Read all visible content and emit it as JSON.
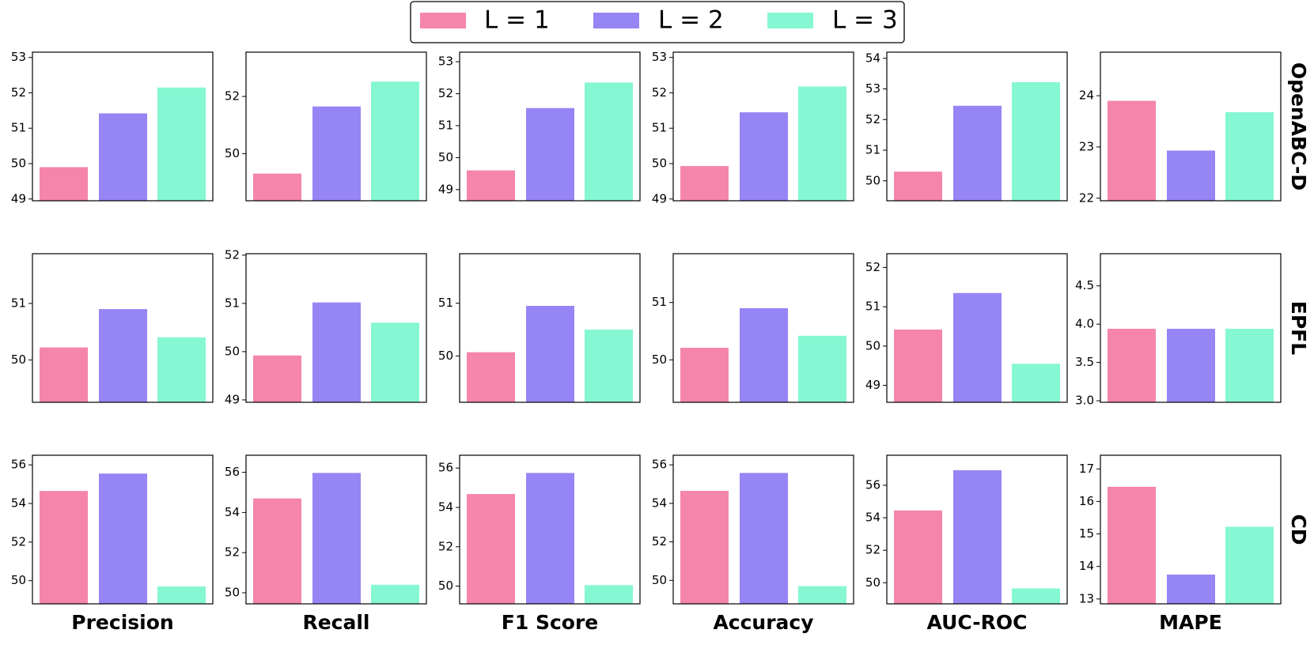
{
  "chart_data": {
    "type": "bar",
    "layout": "grid",
    "series_names": [
      "L = 1",
      "L = 2",
      "L = 3"
    ],
    "colors": [
      "#f585aa",
      "#9685f5",
      "#85f7d2"
    ],
    "columns": [
      "Precision",
      "Recall",
      "F1 Score",
      "Accuracy",
      "AUC-ROC",
      "MAPE"
    ],
    "rows": [
      "OpenABC-D",
      "EPFL",
      "CD"
    ],
    "panels": [
      [
        {
          "values": [
            49.9,
            51.42,
            52.15
          ],
          "ylim": [
            48.95,
            53.15
          ],
          "ticks": [
            49,
            50,
            51,
            52,
            53
          ]
        },
        {
          "values": [
            49.3,
            51.65,
            52.52
          ],
          "ylim": [
            48.35,
            53.55
          ],
          "ticks": [
            50,
            52
          ]
        },
        {
          "values": [
            49.6,
            51.55,
            52.35
          ],
          "ylim": [
            48.65,
            53.3
          ],
          "ticks": [
            49,
            50,
            51,
            52,
            53
          ]
        },
        {
          "values": [
            49.93,
            51.45,
            52.18
          ],
          "ylim": [
            48.95,
            53.15
          ],
          "ticks": [
            49,
            50,
            51,
            52,
            53
          ]
        },
        {
          "values": [
            50.3,
            52.45,
            53.22
          ],
          "ylim": [
            49.35,
            54.2
          ],
          "ticks": [
            50,
            51,
            52,
            53,
            54
          ]
        },
        {
          "values": [
            23.9,
            22.93,
            23.68
          ],
          "ylim": [
            21.95,
            24.85
          ],
          "ticks": [
            22,
            23,
            24
          ]
        }
      ],
      [
        {
          "values": [
            50.22,
            50.9,
            50.4
          ],
          "ylim": [
            49.25,
            51.88
          ],
          "ticks": [
            50,
            51
          ]
        },
        {
          "values": [
            49.92,
            51.02,
            50.6
          ],
          "ylim": [
            48.95,
            52.03
          ],
          "ticks": [
            49,
            50,
            51,
            52
          ]
        },
        {
          "values": [
            50.07,
            50.95,
            50.5
          ],
          "ylim": [
            49.12,
            51.94
          ],
          "ticks": [
            50,
            51
          ]
        },
        {
          "values": [
            50.21,
            50.9,
            50.42
          ],
          "ylim": [
            49.26,
            51.85
          ],
          "ticks": [
            50,
            51
          ]
        },
        {
          "values": [
            50.42,
            51.35,
            49.55
          ],
          "ylim": [
            48.57,
            52.35
          ],
          "ticks": [
            49,
            50,
            51,
            52
          ]
        },
        {
          "values": [
            3.94,
            3.94,
            3.94
          ],
          "ylim": [
            2.98,
            4.92
          ],
          "ticks": [
            3.0,
            3.5,
            4.0,
            4.5
          ]
        }
      ],
      [
        {
          "values": [
            54.65,
            55.55,
            49.7
          ],
          "ylim": [
            48.8,
            56.5
          ],
          "ticks": [
            50,
            52,
            54,
            56
          ]
        },
        {
          "values": [
            54.7,
            55.97,
            50.4
          ],
          "ylim": [
            49.45,
            56.85
          ],
          "ticks": [
            50,
            52,
            54,
            56
          ]
        },
        {
          "values": [
            54.68,
            55.75,
            50.05
          ],
          "ylim": [
            49.1,
            56.65
          ],
          "ticks": [
            50,
            52,
            54,
            56
          ]
        },
        {
          "values": [
            54.65,
            55.58,
            49.7
          ],
          "ylim": [
            48.78,
            56.5
          ],
          "ticks": [
            50,
            52,
            54,
            56
          ]
        },
        {
          "values": [
            54.45,
            56.93,
            49.65
          ],
          "ylim": [
            48.7,
            57.85
          ],
          "ticks": [
            50,
            52,
            54,
            56
          ]
        },
        {
          "values": [
            16.45,
            13.75,
            15.22
          ],
          "ylim": [
            12.85,
            17.42
          ],
          "ticks": [
            13,
            14,
            15,
            16,
            17
          ]
        }
      ]
    ]
  }
}
